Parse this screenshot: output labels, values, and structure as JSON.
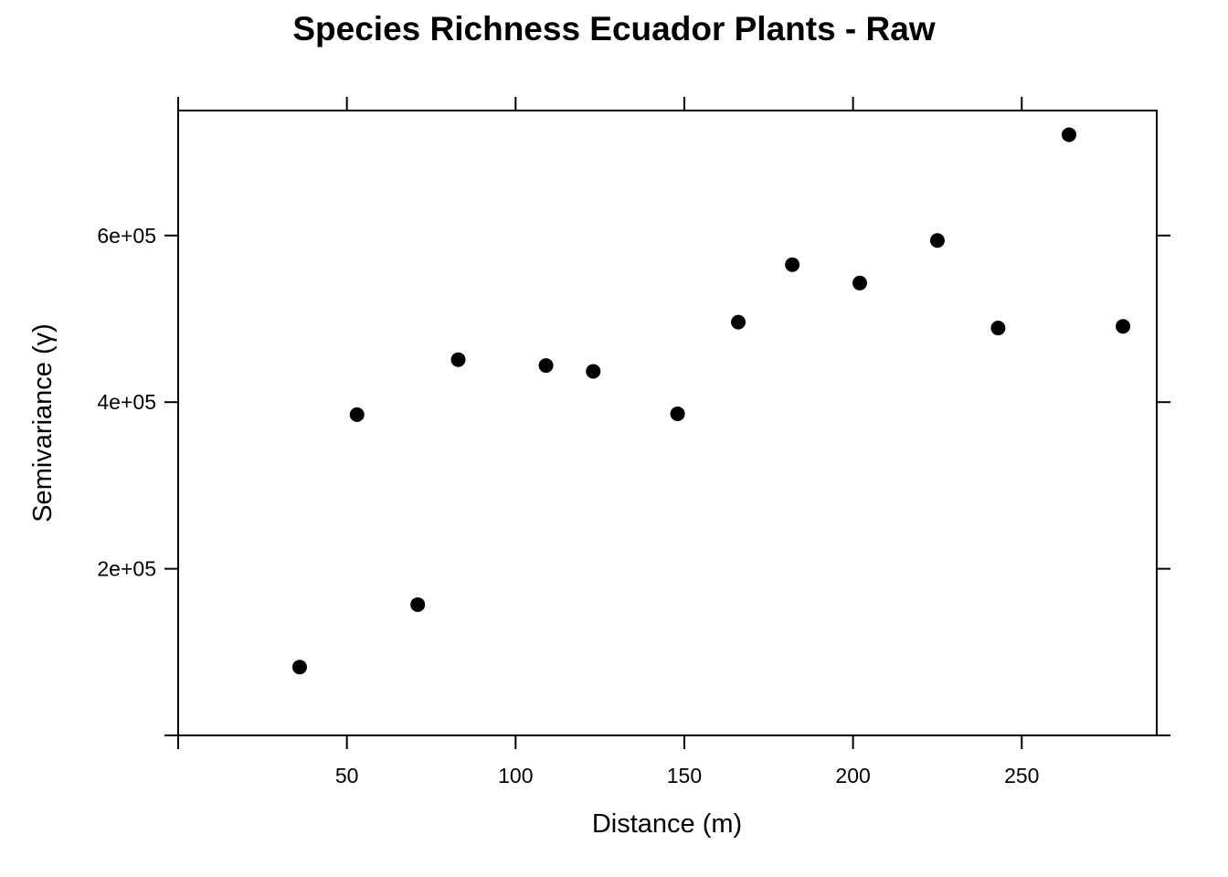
{
  "chart_data": {
    "type": "scatter",
    "title": "Species Richness Ecuador Plants - Raw",
    "xlabel": "Distance (m)",
    "ylabel": "Semivariance (γ)",
    "xlim": [
      0,
      290
    ],
    "ylim": [
      0,
      750000
    ],
    "x_ticks": [
      50,
      100,
      150,
      200,
      250
    ],
    "x_tick_labels": [
      "50",
      "100",
      "150",
      "200",
      "250"
    ],
    "y_ticks": [
      200000,
      400000,
      600000
    ],
    "y_tick_labels": [
      "2e+05",
      "4e+05",
      "6e+05"
    ],
    "grid": false,
    "point_color": "#000000",
    "x": [
      36,
      53,
      71,
      83,
      109,
      123,
      148,
      166,
      182,
      202,
      225,
      243,
      264,
      280
    ],
    "y": [
      82000,
      385000,
      157000,
      451000,
      444000,
      437000,
      386000,
      496000,
      565000,
      543000,
      594000,
      489000,
      721000,
      491000
    ]
  }
}
